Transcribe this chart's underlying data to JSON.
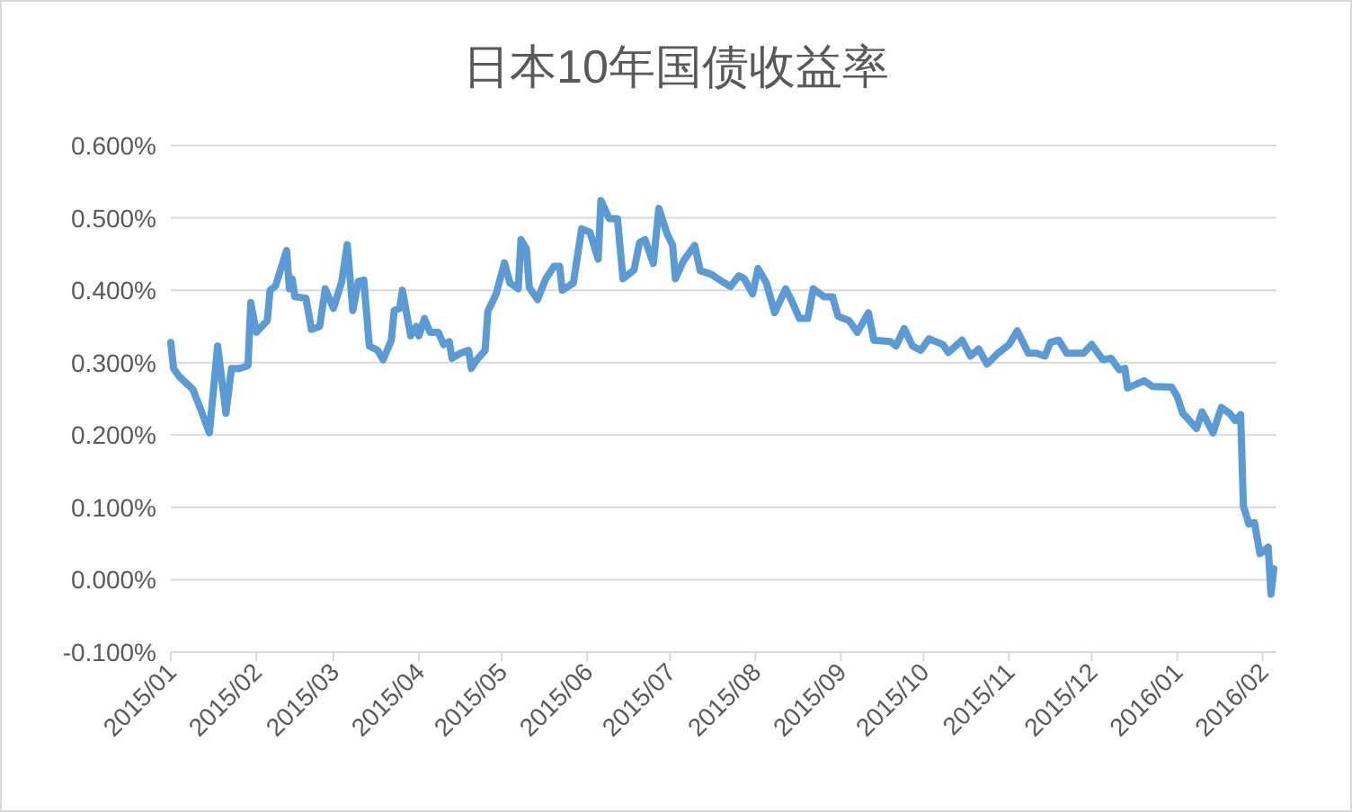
{
  "chart_data": {
    "type": "line",
    "title": "日本10年国债收益率",
    "x": [
      "2015-01-01",
      "2015-01-02",
      "2015-01-04",
      "2015-01-09",
      "2015-01-12",
      "2015-01-15",
      "2015-01-18",
      "2015-01-21",
      "2015-01-23",
      "2015-01-26",
      "2015-01-29",
      "2015-01-30",
      "2015-02-01",
      "2015-02-05",
      "2015-02-06",
      "2015-02-08",
      "2015-02-12",
      "2015-02-13",
      "2015-02-14",
      "2015-02-15",
      "2015-02-19",
      "2015-02-21",
      "2015-02-24",
      "2015-02-26",
      "2015-03-01",
      "2015-03-04",
      "2015-03-06",
      "2015-03-08",
      "2015-03-10",
      "2015-03-12",
      "2015-03-14",
      "2015-03-17",
      "2015-03-19",
      "2015-03-22",
      "2015-03-23",
      "2015-03-25",
      "2015-03-26",
      "2015-03-29",
      "2015-03-31",
      "2015-04-01",
      "2015-04-03",
      "2015-04-05",
      "2015-04-08",
      "2015-04-10",
      "2015-04-12",
      "2015-04-13",
      "2015-04-16",
      "2015-04-19",
      "2015-04-20",
      "2015-04-22",
      "2015-04-25",
      "2015-04-26",
      "2015-04-29",
      "2015-05-02",
      "2015-05-04",
      "2015-05-07",
      "2015-05-08",
      "2015-05-10",
      "2015-05-11",
      "2015-05-14",
      "2015-05-17",
      "2015-05-20",
      "2015-05-22",
      "2015-05-23",
      "2015-05-27",
      "2015-05-30",
      "2015-06-02",
      "2015-06-05",
      "2015-06-06",
      "2015-06-09",
      "2015-06-12",
      "2015-06-14",
      "2015-06-18",
      "2015-06-20",
      "2015-06-22",
      "2015-06-25",
      "2015-06-27",
      "2015-06-30",
      "2015-07-02",
      "2015-07-03",
      "2015-07-06",
      "2015-07-10",
      "2015-07-12",
      "2015-07-16",
      "2015-07-20",
      "2015-07-23",
      "2015-07-26",
      "2015-07-28",
      "2015-07-31",
      "2015-08-02",
      "2015-08-05",
      "2015-08-08",
      "2015-08-12",
      "2015-08-14",
      "2015-08-17",
      "2015-08-20",
      "2015-08-22",
      "2015-08-26",
      "2015-08-29",
      "2015-08-31",
      "2015-09-04",
      "2015-09-07",
      "2015-09-11",
      "2015-09-13",
      "2015-09-19",
      "2015-09-21",
      "2015-09-24",
      "2015-09-27",
      "2015-09-30",
      "2015-10-03",
      "2015-10-08",
      "2015-10-10",
      "2015-10-15",
      "2015-10-18",
      "2015-10-21",
      "2015-10-24",
      "2015-10-28",
      "2015-11-01",
      "2015-11-04",
      "2015-11-08",
      "2015-11-11",
      "2015-11-14",
      "2015-11-16",
      "2015-11-19",
      "2015-11-22",
      "2015-11-28",
      "2015-12-01",
      "2015-12-05",
      "2015-12-08",
      "2015-12-11",
      "2015-12-13",
      "2015-12-14",
      "2015-12-20",
      "2015-12-23",
      "2015-12-30",
      "2016-01-01",
      "2016-01-03",
      "2016-01-05",
      "2016-01-08",
      "2016-01-10",
      "2016-01-14",
      "2016-01-17",
      "2016-01-20",
      "2016-01-22",
      "2016-01-24",
      "2016-01-25",
      "2016-01-27",
      "2016-01-29",
      "2016-01-31",
      "2016-02-03",
      "2016-02-04",
      "2016-02-05"
    ],
    "series": [
      {
        "color": "#5b9bd5",
        "values": [
          0.328,
          0.292,
          0.281,
          0.263,
          0.234,
          0.203,
          0.323,
          0.23,
          0.292,
          0.292,
          0.296,
          0.383,
          0.342,
          0.358,
          0.4,
          0.406,
          0.455,
          0.402,
          0.416,
          0.391,
          0.389,
          0.346,
          0.35,
          0.402,
          0.375,
          0.412,
          0.463,
          0.372,
          0.412,
          0.414,
          0.323,
          0.317,
          0.304,
          0.331,
          0.372,
          0.375,
          0.4,
          0.337,
          0.35,
          0.337,
          0.361,
          0.342,
          0.342,
          0.325,
          0.329,
          0.306,
          0.313,
          0.317,
          0.292,
          0.304,
          0.317,
          0.371,
          0.395,
          0.438,
          0.41,
          0.402,
          0.47,
          0.457,
          0.404,
          0.387,
          0.416,
          0.433,
          0.433,
          0.4,
          0.41,
          0.485,
          0.48,
          0.443,
          0.524,
          0.499,
          0.499,
          0.416,
          0.428,
          0.466,
          0.47,
          0.437,
          0.513,
          0.478,
          0.462,
          0.416,
          0.441,
          0.462,
          0.427,
          0.422,
          0.412,
          0.405,
          0.42,
          0.416,
          0.395,
          0.43,
          0.41,
          0.369,
          0.402,
          0.387,
          0.361,
          0.361,
          0.402,
          0.391,
          0.391,
          0.364,
          0.358,
          0.342,
          0.369,
          0.331,
          0.329,
          0.323,
          0.347,
          0.323,
          0.317,
          0.333,
          0.325,
          0.314,
          0.331,
          0.309,
          0.319,
          0.298,
          0.313,
          0.325,
          0.344,
          0.313,
          0.313,
          0.309,
          0.328,
          0.331,
          0.313,
          0.313,
          0.325,
          0.304,
          0.306,
          0.29,
          0.292,
          0.265,
          0.275,
          0.267,
          0.266,
          0.253,
          0.23,
          0.222,
          0.209,
          0.232,
          0.203,
          0.238,
          0.23,
          0.22,
          0.228,
          0.102,
          0.077,
          0.079,
          0.036,
          0.045,
          -0.02,
          0.015
        ]
      }
    ],
    "xlim": [
      "2015-01-01",
      "2016-02-06"
    ],
    "xticks": [
      {
        "value": "2015-01-01",
        "label": "2015/01"
      },
      {
        "value": "2015-02-01",
        "label": "2015/02"
      },
      {
        "value": "2015-03-01",
        "label": "2015/03"
      },
      {
        "value": "2015-04-01",
        "label": "2015/04"
      },
      {
        "value": "2015-05-01",
        "label": "2015/05"
      },
      {
        "value": "2015-06-01",
        "label": "2015/06"
      },
      {
        "value": "2015-07-01",
        "label": "2015/07"
      },
      {
        "value": "2015-08-01",
        "label": "2015/08"
      },
      {
        "value": "2015-09-01",
        "label": "2015/09"
      },
      {
        "value": "2015-10-01",
        "label": "2015/10"
      },
      {
        "value": "2015-11-01",
        "label": "2015/11"
      },
      {
        "value": "2015-12-01",
        "label": "2015/12"
      },
      {
        "value": "2016-01-01",
        "label": "2016/01"
      },
      {
        "value": "2016-02-01",
        "label": "2016/02"
      }
    ],
    "ylim": [
      -0.1,
      0.6
    ],
    "yticks": [
      {
        "value": -0.1,
        "label": "-0.100%"
      },
      {
        "value": 0,
        "label": "0.000%"
      },
      {
        "value": 0.1,
        "label": "0.100%"
      },
      {
        "value": 0.2,
        "label": "0.200%"
      },
      {
        "value": 0.3,
        "label": "0.300%"
      },
      {
        "value": 0.4,
        "label": "0.400%"
      },
      {
        "value": 0.5,
        "label": "0.500%"
      },
      {
        "value": 0.6,
        "label": "0.600%"
      }
    ],
    "grid": "y"
  }
}
